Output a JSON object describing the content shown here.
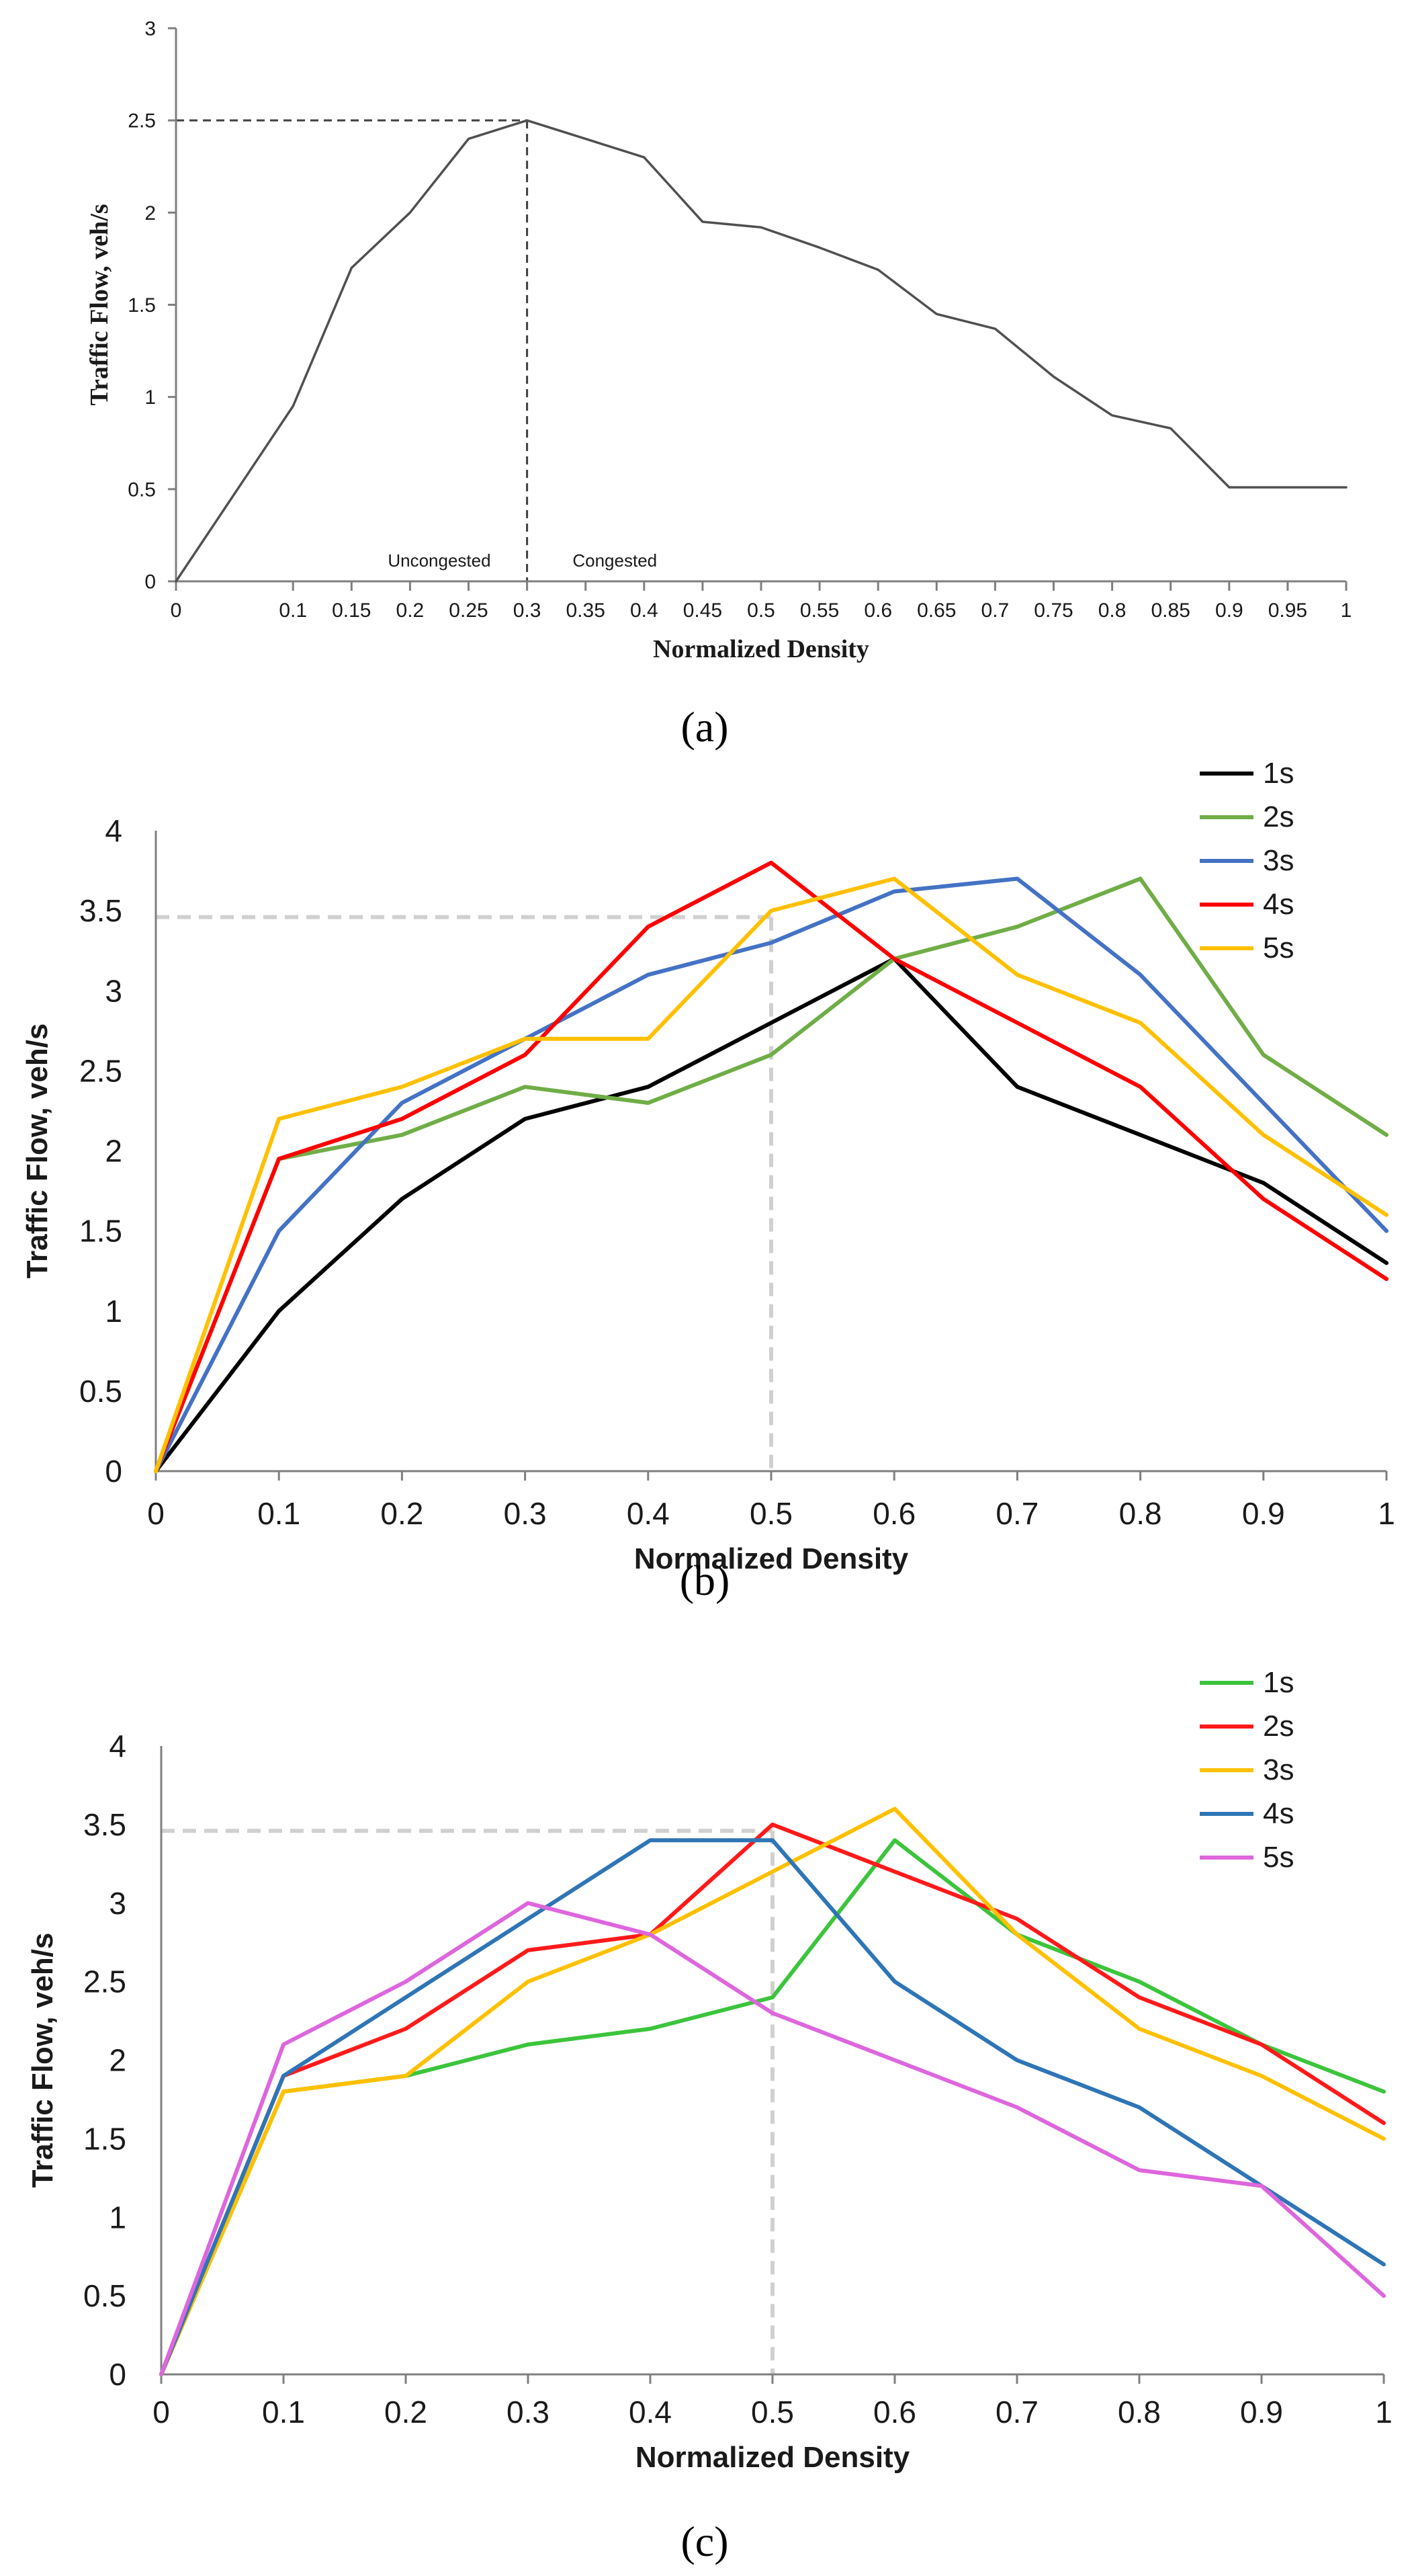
{
  "colors": {
    "axis": "#7f7f7f",
    "ref_dash_a": "#404040",
    "ref_dash_bc": "#d0d0d0",
    "text": "#1a1a1a"
  },
  "captions": {
    "a": "(a)",
    "b": "(b)",
    "c": "(c)"
  },
  "chart_data": [
    {
      "id": "a",
      "type": "line",
      "title": "",
      "xlabel": "Normalized Density",
      "ylabel": "Traffic Flow, veh/s",
      "xlim": [
        0,
        1
      ],
      "ylim": [
        0,
        3
      ],
      "xticks": [
        "0",
        "0.1",
        "0.15",
        "0.2",
        "0.25",
        "0.3",
        "0.35",
        "0.4",
        "0.45",
        "0.5",
        "0.55",
        "0.6",
        "0.65",
        "0.7",
        "0.75",
        "0.8",
        "0.85",
        "0.9",
        "0.95",
        "1"
      ],
      "yticks": [
        "0",
        "0.5",
        "1",
        "1.5",
        "2",
        "2.5",
        "3"
      ],
      "annotations": [
        "Uncongested",
        "Congested"
      ],
      "reference": {
        "x": 0.3,
        "y": 2.5
      },
      "series": [
        {
          "name": "flow",
          "color": "#505050",
          "x": [
            0,
            0.1,
            0.15,
            0.2,
            0.25,
            0.3,
            0.35,
            0.4,
            0.45,
            0.5,
            0.55,
            0.6,
            0.65,
            0.7,
            0.75,
            0.8,
            0.85,
            0.9,
            0.95,
            1
          ],
          "values": [
            0,
            0.95,
            1.7,
            2.0,
            2.4,
            2.5,
            2.4,
            2.3,
            1.95,
            1.92,
            1.81,
            1.69,
            1.45,
            1.37,
            1.11,
            0.9,
            0.83,
            0.51,
            0.51,
            0.51
          ]
        }
      ]
    },
    {
      "id": "b",
      "type": "line",
      "title": "",
      "xlabel": "Normalized Density",
      "ylabel": "Traffic Flow, veh/s",
      "xlim": [
        0,
        1
      ],
      "ylim": [
        0,
        4
      ],
      "xticks": [
        "0",
        "0.1",
        "0.2",
        "0.3",
        "0.4",
        "0.5",
        "0.6",
        "0.7",
        "0.8",
        "0.9",
        "1"
      ],
      "yticks": [
        "0",
        "0.5",
        "1",
        "1.5",
        "2",
        "2.5",
        "3",
        "3.5",
        "4"
      ],
      "reference": {
        "x": 0.5,
        "y": 3.46
      },
      "legend": "top-right",
      "series": [
        {
          "name": "1s",
          "color": "#000000",
          "x": [
            0,
            0.1,
            0.2,
            0.3,
            0.4,
            0.5,
            0.6,
            0.7,
            0.8,
            0.9,
            1
          ],
          "values": [
            0,
            1.0,
            1.7,
            2.2,
            2.4,
            2.8,
            3.2,
            2.4,
            2.1,
            1.8,
            1.3
          ]
        },
        {
          "name": "2s",
          "color": "#70ad47",
          "x": [
            0,
            0.1,
            0.2,
            0.3,
            0.4,
            0.5,
            0.6,
            0.7,
            0.8,
            0.9,
            1
          ],
          "values": [
            0,
            1.95,
            2.1,
            2.4,
            2.3,
            2.6,
            3.2,
            3.4,
            3.7,
            2.6,
            2.1
          ]
        },
        {
          "name": "3s",
          "color": "#4472c4",
          "x": [
            0,
            0.1,
            0.2,
            0.3,
            0.4,
            0.5,
            0.6,
            0.7,
            0.8,
            0.9,
            1
          ],
          "values": [
            0,
            1.5,
            2.3,
            2.7,
            3.1,
            3.3,
            3.62,
            3.7,
            3.1,
            2.3,
            1.5
          ]
        },
        {
          "name": "4s",
          "color": "#ff0000",
          "x": [
            0,
            0.1,
            0.2,
            0.3,
            0.4,
            0.5,
            0.6,
            0.7,
            0.8,
            0.9,
            1
          ],
          "values": [
            0,
            1.95,
            2.2,
            2.6,
            3.4,
            3.8,
            3.2,
            2.8,
            2.4,
            1.7,
            1.2
          ]
        },
        {
          "name": "5s",
          "color": "#ffc000",
          "x": [
            0,
            0.1,
            0.2,
            0.3,
            0.4,
            0.5,
            0.6,
            0.7,
            0.8,
            0.9,
            1
          ],
          "values": [
            0,
            2.2,
            2.4,
            2.7,
            2.7,
            3.5,
            3.7,
            3.1,
            2.8,
            2.1,
            1.6
          ]
        }
      ]
    },
    {
      "id": "c",
      "type": "line",
      "title": "",
      "xlabel": "Normalized Density",
      "ylabel": "Traffic Flow, veh/s",
      "xlim": [
        0,
        1
      ],
      "ylim": [
        0,
        4
      ],
      "xticks": [
        "0",
        "0.1",
        "0.2",
        "0.3",
        "0.4",
        "0.5",
        "0.6",
        "0.7",
        "0.8",
        "0.9",
        "1"
      ],
      "yticks": [
        "0",
        "0.5",
        "1",
        "1.5",
        "2",
        "2.5",
        "3",
        "3.5",
        "4"
      ],
      "reference": {
        "x": 0.5,
        "y": 3.46
      },
      "legend": "top-right",
      "series": [
        {
          "name": "1s",
          "color": "#3cc43c",
          "x": [
            0,
            0.1,
            0.2,
            0.3,
            0.4,
            0.5,
            0.6,
            0.7,
            0.8,
            0.9,
            1
          ],
          "values": [
            0,
            1.8,
            1.9,
            2.1,
            2.2,
            2.4,
            3.4,
            2.8,
            2.5,
            2.1,
            1.8
          ]
        },
        {
          "name": "2s",
          "color": "#ff1a1a",
          "x": [
            0,
            0.1,
            0.2,
            0.3,
            0.4,
            0.5,
            0.6,
            0.7,
            0.8,
            0.9,
            1
          ],
          "values": [
            0,
            1.9,
            2.2,
            2.7,
            2.8,
            3.5,
            3.2,
            2.9,
            2.4,
            2.1,
            1.6
          ]
        },
        {
          "name": "3s",
          "color": "#ffc000",
          "x": [
            0,
            0.1,
            0.2,
            0.3,
            0.4,
            0.5,
            0.6,
            0.7,
            0.8,
            0.9,
            1
          ],
          "values": [
            0,
            1.8,
            1.9,
            2.5,
            2.8,
            3.2,
            3.6,
            2.8,
            2.2,
            1.9,
            1.5
          ]
        },
        {
          "name": "4s",
          "color": "#2e75b6",
          "x": [
            0,
            0.1,
            0.2,
            0.3,
            0.4,
            0.5,
            0.6,
            0.7,
            0.8,
            0.9,
            1
          ],
          "values": [
            0,
            1.9,
            2.4,
            2.9,
            3.4,
            3.4,
            2.5,
            2.0,
            1.7,
            1.2,
            0.7
          ]
        },
        {
          "name": "5s",
          "color": "#dd66dd",
          "x": [
            0,
            0.1,
            0.2,
            0.3,
            0.4,
            0.5,
            0.6,
            0.7,
            0.8,
            0.9,
            1
          ],
          "values": [
            0,
            2.1,
            2.5,
            3.0,
            2.8,
            2.3,
            2.0,
            1.7,
            1.3,
            1.2,
            0.5
          ]
        }
      ]
    }
  ]
}
